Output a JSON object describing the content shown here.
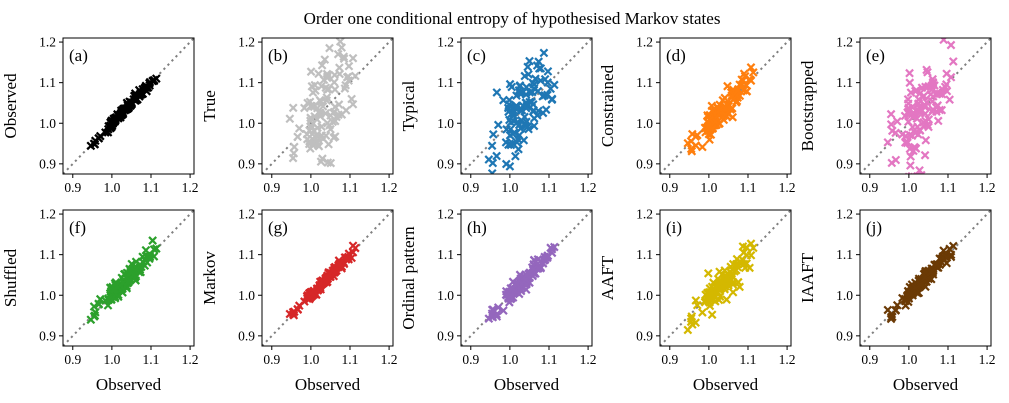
{
  "figure": {
    "title": "Order one conditional entropy of hypothesised Markov states"
  },
  "chart_data": [
    {
      "type": "scatter",
      "panel": "(a)",
      "xlabel": "",
      "ylabel": "Observed",
      "color": "#000000",
      "marker": "x",
      "xlim": [
        0.875,
        1.21
      ],
      "ylim": [
        0.875,
        1.21
      ],
      "xticks": [
        "0.9",
        "1.0",
        "1.1",
        "1.2"
      ],
      "yticks": [
        "0.9",
        "1.0",
        "1.1",
        "1.2"
      ],
      "reference_line": "y = x (dotted gray)",
      "spread": 0.005,
      "seed": 11
    },
    {
      "type": "scatter",
      "panel": "(b)",
      "xlabel": "",
      "ylabel": "True",
      "color": "#bfbfbf",
      "marker": "x",
      "xlim": [
        0.875,
        1.21
      ],
      "ylim": [
        0.875,
        1.21
      ],
      "xticks": [
        "0.9",
        "1.0",
        "1.1",
        "1.2"
      ],
      "yticks": [
        "0.9",
        "1.0",
        "1.1",
        "1.2"
      ],
      "reference_line": "y = x (dotted gray)",
      "spread": 0.055,
      "seed": 23
    },
    {
      "type": "scatter",
      "panel": "(c)",
      "xlabel": "",
      "ylabel": "Typical",
      "color": "#1f77b4",
      "marker": "x",
      "xlim": [
        0.875,
        1.21
      ],
      "ylim": [
        0.875,
        1.21
      ],
      "xticks": [
        "0.9",
        "1.0",
        "1.1",
        "1.2"
      ],
      "yticks": [
        "0.9",
        "1.0",
        "1.1",
        "1.2"
      ],
      "reference_line": "y = x (dotted gray)",
      "spread": 0.045,
      "seed": 37
    },
    {
      "type": "scatter",
      "panel": "(d)",
      "xlabel": "",
      "ylabel": "Constrained",
      "color": "#ff7f0e",
      "marker": "x",
      "xlim": [
        0.875,
        1.21
      ],
      "ylim": [
        0.875,
        1.21
      ],
      "xticks": [
        "0.9",
        "1.0",
        "1.1",
        "1.2"
      ],
      "yticks": [
        "0.9",
        "1.0",
        "1.1",
        "1.2"
      ],
      "reference_line": "y = x (dotted gray)",
      "spread": 0.018,
      "seed": 41
    },
    {
      "type": "scatter",
      "panel": "(e)",
      "xlabel": "",
      "ylabel": "Bootstrapped",
      "color": "#e377c2",
      "marker": "x",
      "xlim": [
        0.875,
        1.21
      ],
      "ylim": [
        0.875,
        1.21
      ],
      "xticks": [
        "0.9",
        "1.0",
        "1.1",
        "1.2"
      ],
      "yticks": [
        "0.9",
        "1.0",
        "1.1",
        "1.2"
      ],
      "reference_line": "y = x (dotted gray)",
      "spread": 0.06,
      "seed": 53
    },
    {
      "type": "scatter",
      "panel": "(f)",
      "xlabel": "Observed",
      "ylabel": "Shuffled",
      "color": "#2ca02c",
      "marker": "x",
      "xlim": [
        0.875,
        1.21
      ],
      "ylim": [
        0.875,
        1.21
      ],
      "xticks": [
        "0.9",
        "1.0",
        "1.1",
        "1.2"
      ],
      "yticks": [
        "0.9",
        "1.0",
        "1.1",
        "1.2"
      ],
      "reference_line": "y = x (dotted gray)",
      "spread": 0.012,
      "seed": 67
    },
    {
      "type": "scatter",
      "panel": "(g)",
      "xlabel": "Observed",
      "ylabel": "Markov",
      "color": "#d62728",
      "marker": "x",
      "xlim": [
        0.875,
        1.21
      ],
      "ylim": [
        0.875,
        1.21
      ],
      "xticks": [
        "0.9",
        "1.0",
        "1.1",
        "1.2"
      ],
      "yticks": [
        "0.9",
        "1.0",
        "1.1",
        "1.2"
      ],
      "reference_line": "y = x (dotted gray)",
      "spread": 0.006,
      "seed": 71
    },
    {
      "type": "scatter",
      "panel": "(h)",
      "xlabel": "Observed",
      "ylabel": "Ordinal pattern",
      "color": "#9467bd",
      "marker": "x",
      "xlim": [
        0.875,
        1.21
      ],
      "ylim": [
        0.875,
        1.21
      ],
      "xticks": [
        "0.9",
        "1.0",
        "1.1",
        "1.2"
      ],
      "yticks": [
        "0.9",
        "1.0",
        "1.1",
        "1.2"
      ],
      "reference_line": "y = x (dotted gray)",
      "spread": 0.01,
      "seed": 83
    },
    {
      "type": "scatter",
      "panel": "(i)",
      "xlabel": "Observed",
      "ylabel": "AAFT",
      "color": "#d4b800",
      "marker": "x",
      "xlim": [
        0.875,
        1.21
      ],
      "ylim": [
        0.875,
        1.21
      ],
      "xticks": [
        "0.9",
        "1.0",
        "1.1",
        "1.2"
      ],
      "yticks": [
        "0.9",
        "1.0",
        "1.1",
        "1.2"
      ],
      "reference_line": "y = x (dotted gray)",
      "spread": 0.022,
      "bias": -0.012,
      "seed": 97
    },
    {
      "type": "scatter",
      "panel": "(j)",
      "xlabel": "Observed",
      "ylabel": "IAAFT",
      "color": "#6b3a05",
      "marker": "x",
      "xlim": [
        0.875,
        1.21
      ],
      "ylim": [
        0.875,
        1.21
      ],
      "xticks": [
        "0.9",
        "1.0",
        "1.1",
        "1.2"
      ],
      "yticks": [
        "0.9",
        "1.0",
        "1.1",
        "1.2"
      ],
      "reference_line": "y = x (dotted gray)",
      "spread": 0.009,
      "seed": 101
    }
  ]
}
